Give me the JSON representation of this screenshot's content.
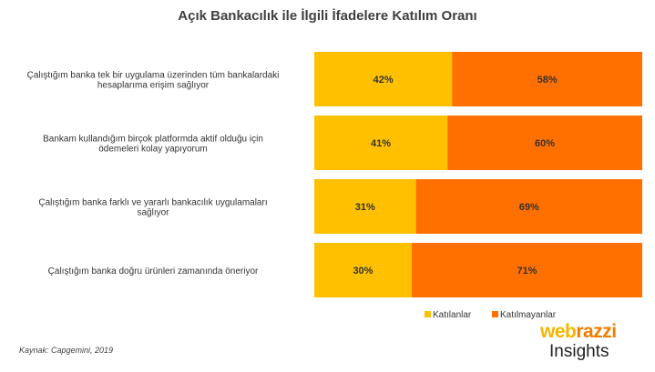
{
  "chart_data": {
    "type": "bar",
    "orientation": "horizontal",
    "stacked": true,
    "title": "Açık Bankacılık ile İlgili İfadelere Katılım Oranı",
    "categories": [
      [
        "Çalıştığım banka tek bir uygulama üzerinden tüm bankalardaki",
        "hesaplarıma erişim sağlıyor"
      ],
      [
        "Bankam kullandığım birçok platformda aktif olduğu için",
        "ödemeleri kolay yapıyorum"
      ],
      [
        "Çalıştığım banka farklı ve yararlı bankacılık uygulamaları",
        "sağlıyor"
      ],
      [
        "Çalıştığım banka doğru ürünleri zamanında öneriyor"
      ]
    ],
    "series": [
      {
        "name": "Katılanlar",
        "color": "#FFC000",
        "values": [
          42,
          41,
          31,
          30
        ],
        "labels": [
          "42%",
          "41%",
          "31%",
          "30%"
        ]
      },
      {
        "name": "Katılmayanlar",
        "color": "#FF7000",
        "values": [
          58,
          60,
          69,
          71
        ],
        "labels": [
          "58%",
          "60%",
          "69%",
          "71%"
        ]
      }
    ],
    "legend_position": "bottom-right",
    "grid": false
  },
  "source": "Kaynak: Capgemini, 2019",
  "brand": {
    "top_part1": "web",
    "top_part2": "razzi",
    "bottom": "Insights"
  }
}
